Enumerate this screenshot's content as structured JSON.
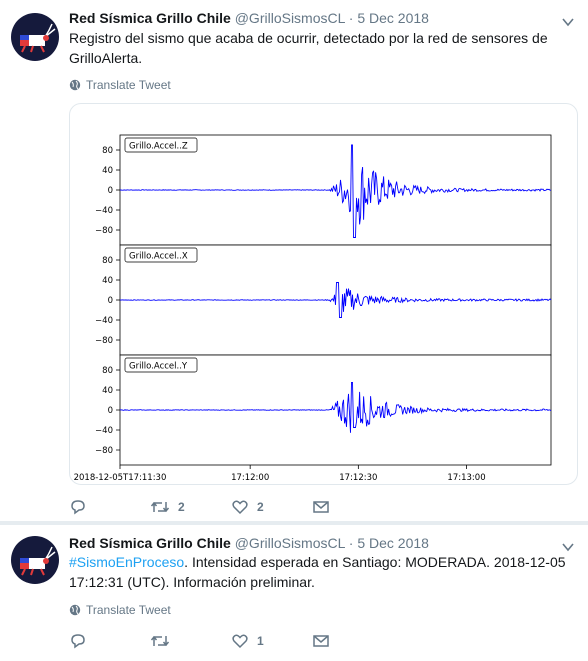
{
  "tweets": [
    {
      "name": "Red Sísmica Grillo Chile",
      "handle": "@GrilloSismosCL",
      "date": "5 Dec 2018",
      "text": "Registro del sismo que acaba de ocurrir, detectado por la red de sensores de GrilloAlerta.",
      "translate": "Translate Tweet",
      "reply_count": "",
      "retweet_count": "2",
      "like_count": "2"
    },
    {
      "name": "Red Sísmica Grillo Chile",
      "handle": "@GrilloSismosCL",
      "date": "5 Dec 2018",
      "hashtag": "#SismoEnProceso",
      "text_after_hashtag": ". Intensidad esperada en Santiago: MODERADA. 2018-12-05 17:12:31 (UTC). Información preliminar.",
      "translate": "Translate Tweet",
      "reply_count": "",
      "retweet_count": "",
      "like_count": "1"
    }
  ],
  "chart_data": {
    "type": "line",
    "panels": [
      {
        "name": "Grillo.Accel..Z",
        "yticks": [
          "80",
          "40",
          "0",
          "−40",
          "−80"
        ],
        "ylim": [
          -110,
          110
        ],
        "peak": 90,
        "trough": -95
      },
      {
        "name": "Grillo.Accel..X",
        "yticks": [
          "80",
          "40",
          "0",
          "−40",
          "−80"
        ],
        "ylim": [
          -110,
          110
        ],
        "peak": 35,
        "trough": -35
      },
      {
        "name": "Grillo.Accel..Y",
        "yticks": [
          "80",
          "40",
          "0",
          "−40",
          "−80"
        ],
        "ylim": [
          -110,
          110
        ],
        "peak": 55,
        "trough": -35
      }
    ],
    "xtick_labels": [
      "2018-12-05T17:11:30",
      "17:12:00",
      "17:12:30",
      "17:13:00"
    ],
    "event_time": "17:12:31",
    "series_color": "#0000ff",
    "grid": false
  }
}
